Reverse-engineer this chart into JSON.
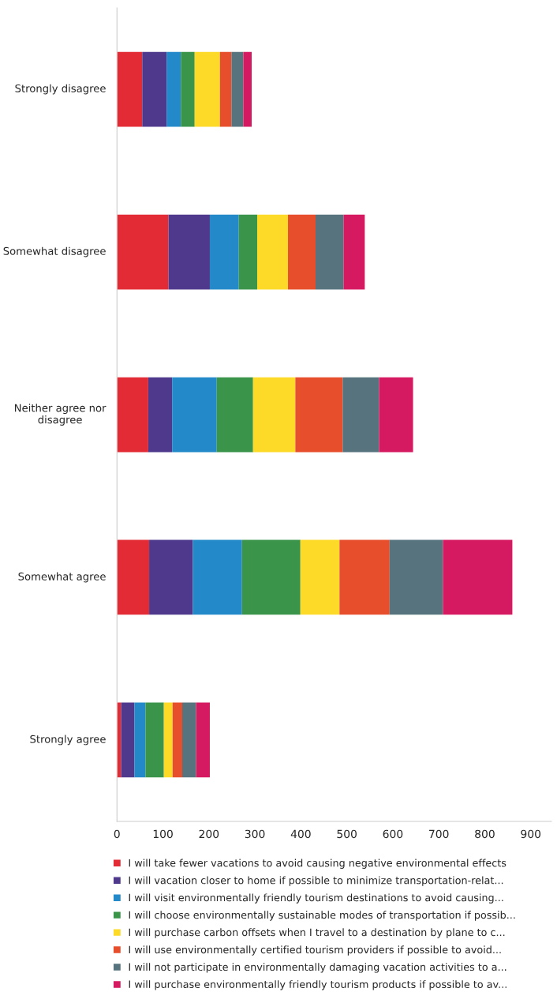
{
  "chart_data": {
    "type": "bar",
    "orientation": "horizontal",
    "stacked": true,
    "categories": [
      "Strongly disagree",
      "Somewhat disagree",
      "Neither agree nor disagree",
      "Somewhat agree",
      "Strongly agree"
    ],
    "series": [
      {
        "name": "I will take fewer vacations to avoid causing negative environmental effects",
        "color": "#e32b35",
        "values": [
          55,
          112,
          68,
          70,
          9
        ]
      },
      {
        "name": "I will vacation closer to home if possible to minimize transportation-relat...",
        "color": "#4f398c",
        "values": [
          53,
          90,
          52,
          95,
          29
        ]
      },
      {
        "name": "I will visit environmentally friendly tourism destinations to avoid causing...",
        "color": "#2389c8",
        "values": [
          31,
          63,
          97,
          107,
          24
        ]
      },
      {
        "name": "I will choose environmentally sustainable modes of transportation if possib...",
        "color": "#3a954b",
        "values": [
          30,
          40,
          79,
          127,
          40
        ]
      },
      {
        "name": "I will purchase carbon offsets when I travel to a destination by plane to c...",
        "color": "#fdd928",
        "values": [
          55,
          67,
          92,
          85,
          19
        ]
      },
      {
        "name": "I will use environmentally certified tourism providers if possible to avoid...",
        "color": "#e74e2b",
        "values": [
          25,
          60,
          103,
          109,
          21
        ]
      },
      {
        "name": "I will not participate in environmentally damaging vacation activities to a...",
        "color": "#56737e",
        "values": [
          26,
          61,
          79,
          116,
          30
        ]
      },
      {
        "name": "I will purchase environmentally friendly tourism products if possible to av...",
        "color": "#d51a61",
        "values": [
          18,
          46,
          74,
          151,
          30
        ]
      }
    ],
    "xlim": [
      0,
      945
    ],
    "xticks": [
      0,
      100,
      200,
      300,
      400,
      500,
      600,
      700,
      800,
      900
    ],
    "grid": false,
    "legend": "bottom"
  }
}
